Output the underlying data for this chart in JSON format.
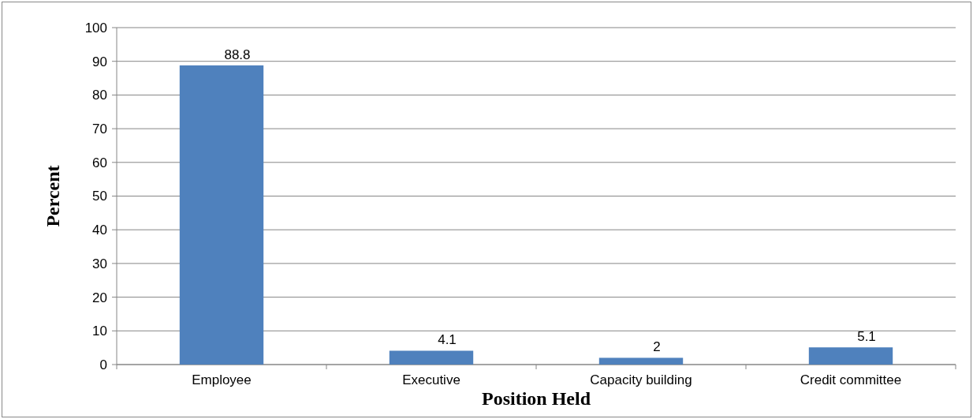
{
  "chart_data": {
    "type": "bar",
    "xlabel": "Position Held",
    "ylabel": "Percent",
    "categories": [
      "Employee",
      "Executive",
      "Capacity building",
      "Credit committee"
    ],
    "values": [
      88.8,
      4.1,
      2,
      5.1
    ],
    "color": "#4f81bd",
    "ylim": [
      0,
      100
    ],
    "yticks": [
      0,
      10,
      20,
      30,
      40,
      50,
      60,
      70,
      80,
      90,
      100
    ],
    "grid": "y",
    "data_labels": true
  }
}
